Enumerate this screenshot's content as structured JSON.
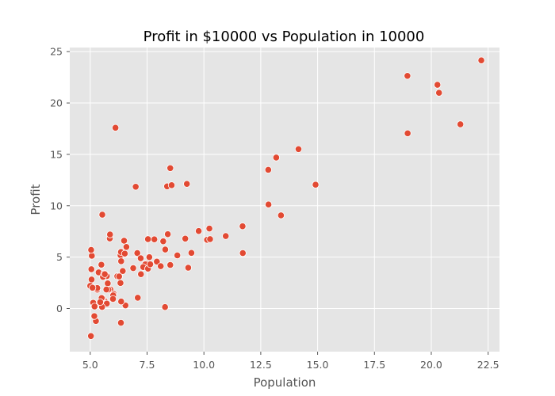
{
  "chart_data": {
    "type": "scatter",
    "title": "Profit in $10000 vs Population in 10000",
    "xlabel": "Population",
    "ylabel": "Profit",
    "xlim": [
      4.1,
      23.0
    ],
    "ylim": [
      -4.2,
      25.4
    ],
    "xticks": [
      5.0,
      7.5,
      10.0,
      12.5,
      15.0,
      17.5,
      20.0,
      22.5
    ],
    "xtick_labels": [
      "5.0",
      "7.5",
      "10.0",
      "12.5",
      "15.0",
      "17.5",
      "20.0",
      "22.5"
    ],
    "yticks": [
      0,
      5,
      10,
      15,
      20,
      25
    ],
    "ytick_labels": [
      "0",
      "5",
      "10",
      "15",
      "20",
      "25"
    ],
    "grid": true,
    "legend": "none",
    "colors": {
      "plot_bg": "#e5e5e5",
      "point": "#e24a33",
      "grid": "#ffffff"
    },
    "series": [
      {
        "points": [
          [
            6.11,
            17.59
          ],
          [
            5.53,
            9.13
          ],
          [
            8.52,
            13.66
          ],
          [
            7.0,
            11.85
          ],
          [
            5.86,
            6.82
          ],
          [
            8.38,
            11.89
          ],
          [
            7.48,
            4.35
          ],
          [
            8.58,
            12.0
          ],
          [
            6.49,
            6.6
          ],
          [
            5.05,
            3.82
          ],
          [
            5.71,
            3.25
          ],
          [
            14.16,
            15.51
          ],
          [
            5.73,
            3.16
          ],
          [
            8.41,
            7.23
          ],
          [
            5.64,
            0.72
          ],
          [
            5.37,
            3.51
          ],
          [
            6.37,
            5.3
          ],
          [
            5.13,
            0.56
          ],
          [
            6.43,
            3.65
          ],
          [
            7.07,
            5.39
          ],
          [
            6.19,
            3.14
          ],
          [
            20.27,
            21.77
          ],
          [
            5.49,
            4.26
          ],
          [
            6.33,
            5.19
          ],
          [
            5.56,
            3.08
          ],
          [
            18.95,
            22.64
          ],
          [
            12.83,
            13.5
          ],
          [
            10.96,
            7.05
          ],
          [
            13.18,
            14.69
          ],
          [
            22.2,
            24.15
          ],
          [
            5.25,
            -1.22
          ],
          [
            6.59,
            5.99
          ],
          [
            9.25,
            12.13
          ],
          [
            5.89,
            1.85
          ],
          [
            8.21,
            6.54
          ],
          [
            7.93,
            4.56
          ],
          [
            8.1,
            4.12
          ],
          [
            5.61,
            3.39
          ],
          [
            12.84,
            10.12
          ],
          [
            6.35,
            5.5
          ],
          [
            5.41,
            0.56
          ],
          [
            6.89,
            3.93
          ],
          [
            11.71,
            5.39
          ],
          [
            5.77,
            2.44
          ],
          [
            7.82,
            6.73
          ],
          [
            7.09,
            1.05
          ],
          [
            5.07,
            5.13
          ],
          [
            5.8,
            1.84
          ],
          [
            11.7,
            8.0
          ],
          [
            5.54,
            1.02
          ],
          [
            7.54,
            6.75
          ],
          [
            5.31,
            1.84
          ],
          [
            7.42,
            4.29
          ],
          [
            7.6,
            5.0
          ],
          [
            6.03,
            1.42
          ],
          [
            6.33,
            2.48
          ],
          [
            6.36,
            4.6
          ],
          [
            6.27,
            3.12
          ],
          [
            5.64,
            3.34
          ],
          [
            9.31,
            3.97
          ],
          [
            9.45,
            5.41
          ],
          [
            8.83,
            5.17
          ],
          [
            5.18,
            -0.74
          ],
          [
            21.28,
            17.93
          ],
          [
            14.91,
            12.05
          ],
          [
            18.96,
            17.05
          ],
          [
            7.22,
            4.89
          ],
          [
            8.3,
            5.74
          ],
          [
            10.24,
            7.78
          ],
          [
            5.5,
            1.02
          ],
          [
            20.34,
            20.99
          ],
          [
            10.14,
            6.68
          ],
          [
            7.33,
            4.03
          ],
          [
            6.01,
            1.28
          ],
          [
            7.23,
            3.34
          ],
          [
            5.03,
            -2.68
          ],
          [
            6.55,
            0.3
          ],
          [
            7.54,
            3.88
          ],
          [
            5.04,
            5.7
          ],
          [
            10.27,
            6.75
          ],
          [
            5.11,
            2.06
          ],
          [
            5.73,
            0.48
          ],
          [
            5.19,
            0.2
          ],
          [
            6.36,
            0.68
          ],
          [
            9.77,
            7.54
          ],
          [
            6.52,
            5.34
          ],
          [
            8.52,
            4.24
          ],
          [
            9.18,
            6.8
          ],
          [
            6.0,
            0.93
          ],
          [
            5.52,
            0.15
          ],
          [
            5.06,
            2.82
          ],
          [
            5.71,
            1.85
          ],
          [
            7.64,
            4.3
          ],
          [
            5.87,
            7.2
          ],
          [
            5.31,
            1.99
          ],
          [
            8.29,
            0.14
          ],
          [
            13.39,
            9.06
          ],
          [
            5.44,
            0.62
          ],
          [
            6.35,
            -1.39
          ],
          [
            5.0,
            2.2
          ],
          [
            5.1,
            2.02
          ]
        ]
      }
    ]
  }
}
